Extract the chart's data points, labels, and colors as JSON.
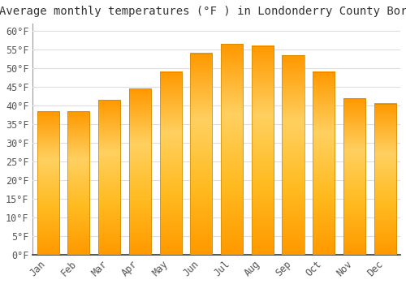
{
  "title": "Average monthly temperatures (°F ) in Londonderry County Borough",
  "months": [
    "Jan",
    "Feb",
    "Mar",
    "Apr",
    "May",
    "Jun",
    "Jul",
    "Aug",
    "Sep",
    "Oct",
    "Nov",
    "Dec"
  ],
  "values": [
    38.5,
    38.5,
    41.5,
    44.5,
    49.0,
    54.0,
    56.5,
    56.0,
    53.5,
    49.0,
    42.0,
    40.5
  ],
  "bar_color_main": "#FFAB00",
  "bar_color_light": "#FFD050",
  "ylim": [
    0,
    62
  ],
  "yticks": [
    0,
    5,
    10,
    15,
    20,
    25,
    30,
    35,
    40,
    45,
    50,
    55,
    60
  ],
  "background_color": "#FFFFFF",
  "grid_color": "#DDDDDD",
  "title_fontsize": 10,
  "tick_fontsize": 8.5,
  "font_family": "monospace"
}
